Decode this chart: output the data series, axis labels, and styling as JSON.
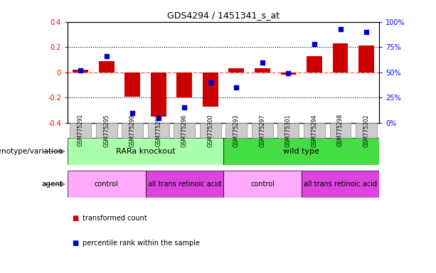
{
  "title": "GDS4294 / 1451341_s_at",
  "samples": [
    "GSM775291",
    "GSM775295",
    "GSM775299",
    "GSM775292",
    "GSM775296",
    "GSM775300",
    "GSM775293",
    "GSM775297",
    "GSM775301",
    "GSM775294",
    "GSM775298",
    "GSM775302"
  ],
  "bar_values": [
    0.02,
    0.09,
    -0.19,
    -0.35,
    -0.2,
    -0.27,
    0.03,
    0.03,
    -0.02,
    0.13,
    0.23,
    0.21
  ],
  "dot_values": [
    0.52,
    0.66,
    0.1,
    0.05,
    0.15,
    0.4,
    0.35,
    0.6,
    0.49,
    0.78,
    0.93,
    0.9
  ],
  "bar_color": "#cc0000",
  "dot_color": "#0000cc",
  "ylim_left": [
    -0.4,
    0.4
  ],
  "ylim_right": [
    0,
    1.0
  ],
  "yticks_left": [
    -0.4,
    -0.2,
    0.0,
    0.2,
    0.4
  ],
  "ytick_labels_left": [
    "-0.4",
    "-0.2",
    "0",
    "0.2",
    "0.4"
  ],
  "yticks_right": [
    0.0,
    0.25,
    0.5,
    0.75,
    1.0
  ],
  "ytick_labels_right": [
    "0%",
    "25%",
    "50%",
    "75%",
    "100%"
  ],
  "zero_line_color": "#ff6666",
  "dotted_line_color": "#000000",
  "dotted_lines": [
    -0.2,
    0.2
  ],
  "genotype_groups": [
    {
      "label": "RARa knockout",
      "start": 0,
      "end": 6,
      "color": "#aaffaa"
    },
    {
      "label": "wild type",
      "start": 6,
      "end": 12,
      "color": "#44dd44"
    }
  ],
  "agent_groups": [
    {
      "label": "control",
      "start": 0,
      "end": 3,
      "color": "#ffaaff"
    },
    {
      "label": "all trans retinoic acid",
      "start": 3,
      "end": 6,
      "color": "#dd44dd"
    },
    {
      "label": "control",
      "start": 6,
      "end": 9,
      "color": "#ffaaff"
    },
    {
      "label": "all trans retinoic acid",
      "start": 9,
      "end": 12,
      "color": "#dd44dd"
    }
  ],
  "row_labels": [
    "genotype/variation",
    "agent"
  ],
  "legend_items": [
    "transformed count",
    "percentile rank within the sample"
  ],
  "background_color": "#ffffff",
  "tick_bg_color": "#cccccc",
  "tick_border_color": "#888888"
}
